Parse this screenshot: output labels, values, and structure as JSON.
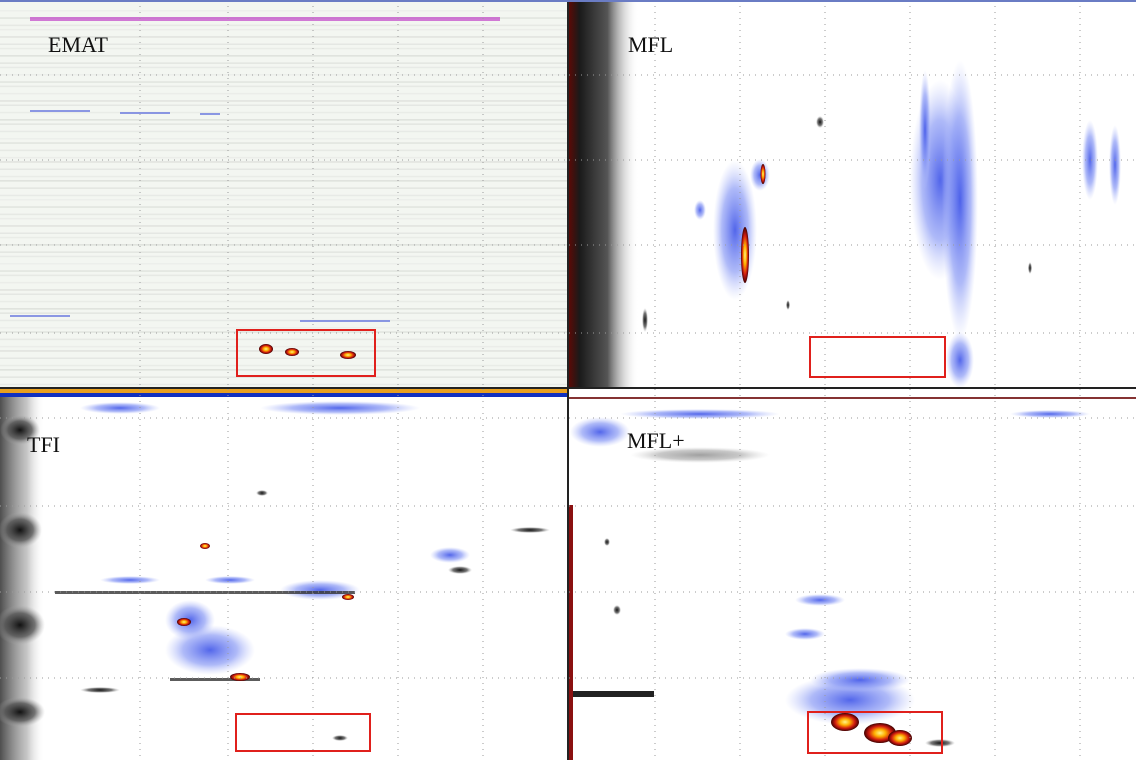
{
  "panels": [
    {
      "label": "EMAT"
    },
    {
      "label": "MFL"
    },
    {
      "label": "TFI"
    },
    {
      "label": "MFL+"
    }
  ]
}
